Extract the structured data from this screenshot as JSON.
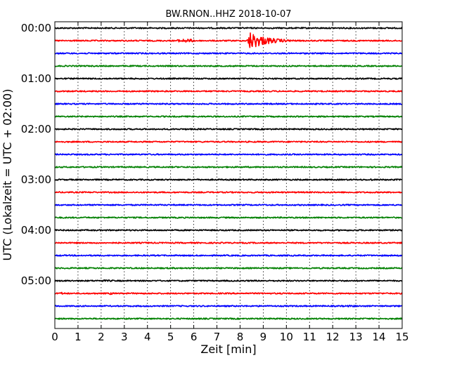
{
  "chart_data": {
    "type": "line",
    "title": "BW.RNON..HHZ 2018-10-07",
    "xlabel": "Zeit  [min]",
    "ylabel": "UTC (Lokalzeit = UTC + 02:00)",
    "xlim": [
      0,
      15
    ],
    "x_ticks": [
      0,
      1,
      2,
      3,
      4,
      5,
      6,
      7,
      8,
      9,
      10,
      11,
      12,
      13,
      14,
      15
    ],
    "x_tick_labels": [
      "0",
      "1",
      "2",
      "3",
      "4",
      "5",
      "6",
      "7",
      "8",
      "9",
      "10",
      "11",
      "12",
      "13",
      "14",
      "15"
    ],
    "y_tick_labels": [
      "00:00",
      "01:00",
      "02:00",
      "03:00",
      "04:00",
      "05:00"
    ],
    "grid": "vertical dotted",
    "trace_interval_minutes": 15,
    "trace_colors": [
      "#000000",
      "#ff0000",
      "#0000ff",
      "#008000"
    ],
    "traces": [
      {
        "start": "00:00",
        "color": "#000000"
      },
      {
        "start": "00:15",
        "color": "#ff0000",
        "events": [
          {
            "x_start": 5.0,
            "x_end": 6.3,
            "amplitude": 0.12
          },
          {
            "x_start": 8.3,
            "x_end": 10.8,
            "amplitude": 0.75
          }
        ]
      },
      {
        "start": "00:30",
        "color": "#0000ff"
      },
      {
        "start": "00:45",
        "color": "#008000"
      },
      {
        "start": "01:00",
        "color": "#000000"
      },
      {
        "start": "01:15",
        "color": "#ff0000"
      },
      {
        "start": "01:30",
        "color": "#0000ff"
      },
      {
        "start": "01:45",
        "color": "#008000"
      },
      {
        "start": "02:00",
        "color": "#000000"
      },
      {
        "start": "02:15",
        "color": "#ff0000"
      },
      {
        "start": "02:30",
        "color": "#0000ff"
      },
      {
        "start": "02:45",
        "color": "#008000"
      },
      {
        "start": "03:00",
        "color": "#000000",
        "events": [
          {
            "x_start": 2.65,
            "x_end": 2.8,
            "amplitude": 0.08
          },
          {
            "x_start": 13.55,
            "x_end": 13.75,
            "amplitude": 0.08
          }
        ]
      },
      {
        "start": "03:15",
        "color": "#ff0000"
      },
      {
        "start": "03:30",
        "color": "#0000ff"
      },
      {
        "start": "03:45",
        "color": "#008000"
      },
      {
        "start": "04:00",
        "color": "#000000"
      },
      {
        "start": "04:15",
        "color": "#ff0000"
      },
      {
        "start": "04:30",
        "color": "#0000ff"
      },
      {
        "start": "04:45",
        "color": "#008000",
        "events": [
          {
            "x_start": 4.3,
            "x_end": 6.2,
            "amplitude": 0.05
          },
          {
            "x_start": 11.0,
            "x_end": 12.3,
            "amplitude": 0.05
          }
        ]
      },
      {
        "start": "05:00",
        "color": "#000000",
        "events": [
          {
            "x_start": 1.2,
            "x_end": 3.2,
            "amplitude": 0.06
          },
          {
            "x_start": 7.8,
            "x_end": 8.6,
            "amplitude": 0.05
          }
        ]
      },
      {
        "start": "05:15",
        "color": "#ff0000",
        "events": [
          {
            "x_start": 0.05,
            "x_end": 0.55,
            "amplitude": 0.08
          },
          {
            "x_start": 2.25,
            "x_end": 2.6,
            "amplitude": 0.08
          }
        ]
      },
      {
        "start": "05:30",
        "color": "#0000ff",
        "events": [
          {
            "x_start": 8.6,
            "x_end": 9.0,
            "amplitude": 0.05
          },
          {
            "x_start": 12.0,
            "x_end": 13.6,
            "amplitude": 0.06
          }
        ]
      },
      {
        "start": "05:45",
        "color": "#008000"
      }
    ]
  }
}
